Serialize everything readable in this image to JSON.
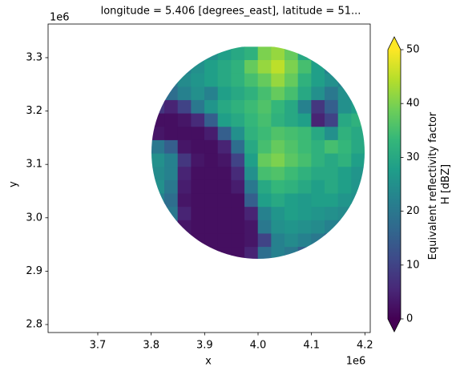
{
  "chart_data": {
    "type": "heatmap",
    "title": "longitude = 5.406 [degrees_east], latitude = 51...",
    "x_label": "x",
    "y_label": "y",
    "x_offset_label": "1e6",
    "y_offset_label": "1e6",
    "colorbar_label": [
      "Equivalent reflectivity factor",
      "H [dBZ]"
    ],
    "colormap": "viridis",
    "clim": [
      0,
      50
    ],
    "cticks": [
      0,
      10,
      20,
      30,
      40,
      50
    ],
    "xlim": [
      3607000,
      4210000
    ],
    "ylim": [
      2785000,
      3363000
    ],
    "xticks": [
      {
        "value": 3700000,
        "label": "3.7"
      },
      {
        "value": 3800000,
        "label": "3.8"
      },
      {
        "value": 3900000,
        "label": "3.9"
      },
      {
        "value": 4000000,
        "label": "4.0"
      },
      {
        "value": 4100000,
        "label": "4.1"
      },
      {
        "value": 4200000,
        "label": "4.2"
      }
    ],
    "yticks": [
      {
        "value": 2800000,
        "label": "2.8"
      },
      {
        "value": 2900000,
        "label": "2.9"
      },
      {
        "value": 3000000,
        "label": "3.0"
      },
      {
        "value": 3100000,
        "label": "3.1"
      },
      {
        "value": 3200000,
        "label": "3.2"
      },
      {
        "value": 3300000,
        "label": "3.3"
      }
    ],
    "x": [
      3812500,
      3837500,
      3862500,
      3887500,
      3912500,
      3937500,
      3962500,
      3987500,
      4012500,
      4037500,
      4062500,
      4087500,
      4112500,
      4137500,
      4162500,
      4187500
    ],
    "y": [
      3307500,
      3282500,
      3257500,
      3232500,
      3207500,
      3182500,
      3157500,
      3132500,
      3107500,
      3082500,
      3057500,
      3032500,
      3007500,
      2982500,
      2957500,
      2932500
    ],
    "z": [
      [
        null,
        null,
        null,
        null,
        25,
        28,
        30,
        32,
        40,
        42,
        38,
        30,
        null,
        null,
        null,
        null
      ],
      [
        null,
        null,
        22,
        25,
        28,
        30,
        32,
        38,
        42,
        45,
        40,
        35,
        28,
        22,
        null,
        null
      ],
      [
        null,
        20,
        24,
        26,
        28,
        30,
        32,
        35,
        38,
        42,
        38,
        32,
        28,
        25,
        22,
        null
      ],
      [
        null,
        18,
        22,
        25,
        22,
        28,
        30,
        32,
        35,
        38,
        35,
        30,
        25,
        20,
        25,
        null
      ],
      [
        8,
        5,
        10,
        20,
        26,
        30,
        32,
        34,
        36,
        33,
        30,
        22,
        8,
        15,
        25,
        28
      ],
      [
        2,
        2,
        3,
        6,
        15,
        28,
        30,
        33,
        35,
        32,
        30,
        28,
        5,
        10,
        30,
        32
      ],
      [
        3,
        2,
        2,
        2,
        4,
        15,
        25,
        32,
        34,
        36,
        35,
        34,
        30,
        25,
        32,
        30
      ],
      [
        20,
        15,
        3,
        2,
        2,
        5,
        18,
        30,
        35,
        38,
        36,
        34,
        32,
        35,
        33,
        30
      ],
      [
        25,
        22,
        8,
        3,
        2,
        3,
        10,
        28,
        38,
        40,
        37,
        35,
        32,
        30,
        32,
        28
      ],
      [
        24,
        22,
        5,
        2,
        2,
        2,
        6,
        25,
        35,
        36,
        34,
        32,
        30,
        30,
        28,
        26
      ],
      [
        25,
        20,
        4,
        2,
        2,
        2,
        4,
        20,
        30,
        33,
        32,
        30,
        28,
        30,
        28,
        26
      ],
      [
        22,
        18,
        3,
        2,
        2,
        2,
        2,
        15,
        28,
        30,
        28,
        27,
        28,
        28,
        26,
        25
      ],
      [
        null,
        20,
        5,
        2,
        2,
        2,
        2,
        5,
        22,
        26,
        28,
        27,
        26,
        25,
        24,
        null
      ],
      [
        null,
        15,
        3,
        2,
        2,
        2,
        2,
        3,
        20,
        25,
        26,
        25,
        24,
        22,
        20,
        null
      ],
      [
        null,
        null,
        4,
        2,
        2,
        2,
        2,
        3,
        10,
        22,
        24,
        22,
        20,
        15,
        null,
        null
      ],
      [
        null,
        null,
        null,
        null,
        2,
        2,
        2,
        5,
        18,
        22,
        20,
        15,
        null,
        null,
        null,
        null
      ]
    ]
  }
}
